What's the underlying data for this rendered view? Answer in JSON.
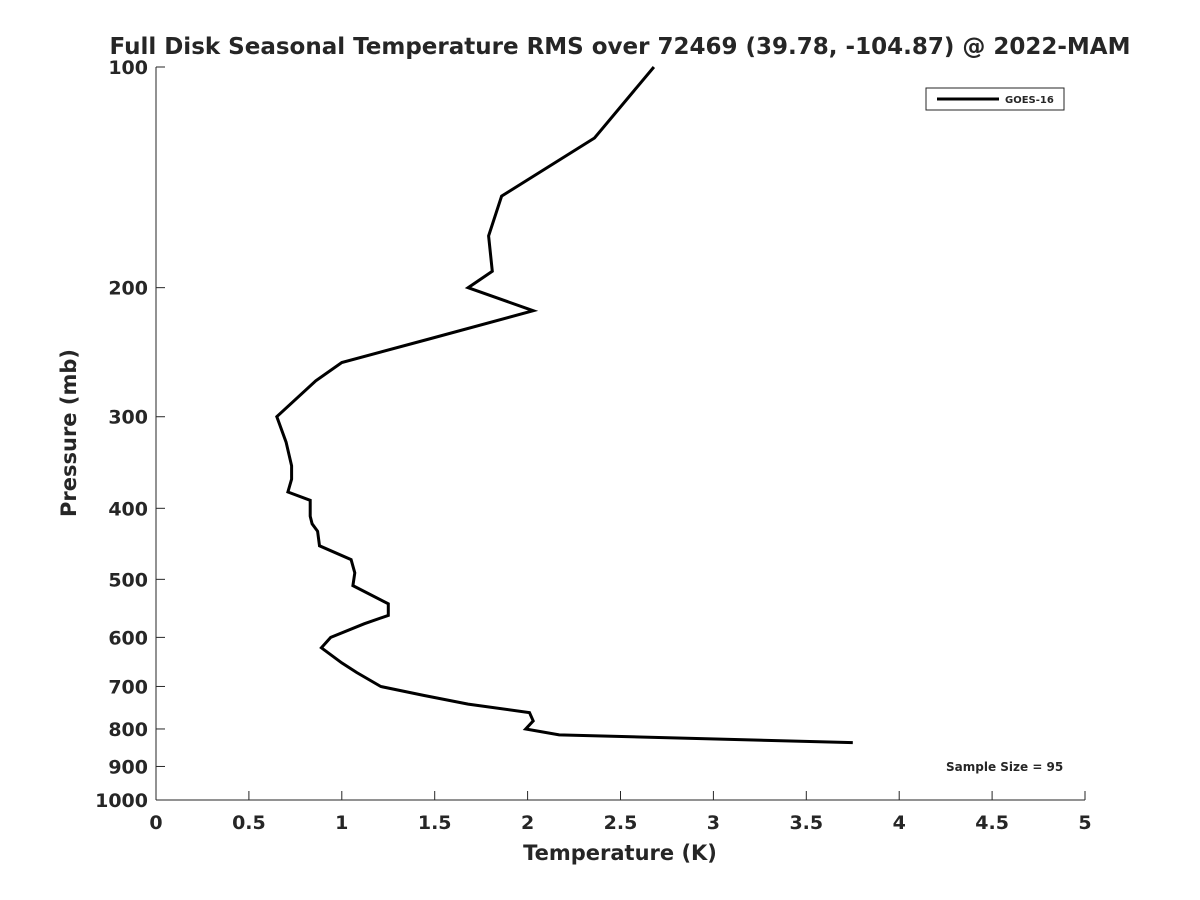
{
  "chart_data": {
    "type": "line",
    "title": "Full Disk Seasonal Temperature RMS over 72469 (39.78, -104.87) @ 2022-MAM",
    "xlabel": "Temperature (K)",
    "ylabel": "Pressure (mb)",
    "xlim": [
      0,
      5
    ],
    "ylim": [
      100,
      1000
    ],
    "y_scale": "log",
    "y_reversed": true,
    "grid": false,
    "legend_position": "top-right",
    "x_ticks": [
      "0",
      "0.5",
      "1",
      "1.5",
      "2",
      "2.5",
      "3",
      "3.5",
      "4",
      "4.5",
      "5"
    ],
    "y_ticks": [
      "100",
      "200",
      "300",
      "400",
      "500",
      "600",
      "700",
      "800",
      "900",
      "1000"
    ],
    "annotation": "Sample Size = 95",
    "series": [
      {
        "name": "GOES-16",
        "color": "#000000",
        "points": [
          {
            "x": 2.68,
            "y": 100
          },
          {
            "x": 2.36,
            "y": 125
          },
          {
            "x": 1.86,
            "y": 150
          },
          {
            "x": 1.79,
            "y": 170
          },
          {
            "x": 1.81,
            "y": 190
          },
          {
            "x": 1.68,
            "y": 200
          },
          {
            "x": 2.03,
            "y": 215
          },
          {
            "x": 1.47,
            "y": 235
          },
          {
            "x": 1.0,
            "y": 253
          },
          {
            "x": 0.86,
            "y": 268
          },
          {
            "x": 0.65,
            "y": 300
          },
          {
            "x": 0.7,
            "y": 325
          },
          {
            "x": 0.73,
            "y": 350
          },
          {
            "x": 0.73,
            "y": 365
          },
          {
            "x": 0.71,
            "y": 380
          },
          {
            "x": 0.83,
            "y": 390
          },
          {
            "x": 0.83,
            "y": 410
          },
          {
            "x": 0.84,
            "y": 420
          },
          {
            "x": 0.87,
            "y": 430
          },
          {
            "x": 0.88,
            "y": 450
          },
          {
            "x": 1.05,
            "y": 470
          },
          {
            "x": 1.07,
            "y": 490
          },
          {
            "x": 1.06,
            "y": 510
          },
          {
            "x": 1.25,
            "y": 540
          },
          {
            "x": 1.25,
            "y": 560
          },
          {
            "x": 1.12,
            "y": 575
          },
          {
            "x": 0.94,
            "y": 600
          },
          {
            "x": 0.89,
            "y": 620
          },
          {
            "x": 1.0,
            "y": 650
          },
          {
            "x": 1.08,
            "y": 670
          },
          {
            "x": 1.21,
            "y": 700
          },
          {
            "x": 1.44,
            "y": 720
          },
          {
            "x": 1.68,
            "y": 740
          },
          {
            "x": 2.01,
            "y": 760
          },
          {
            "x": 2.03,
            "y": 780
          },
          {
            "x": 1.99,
            "y": 800
          },
          {
            "x": 2.17,
            "y": 815
          },
          {
            "x": 3.75,
            "y": 835
          }
        ]
      }
    ]
  }
}
